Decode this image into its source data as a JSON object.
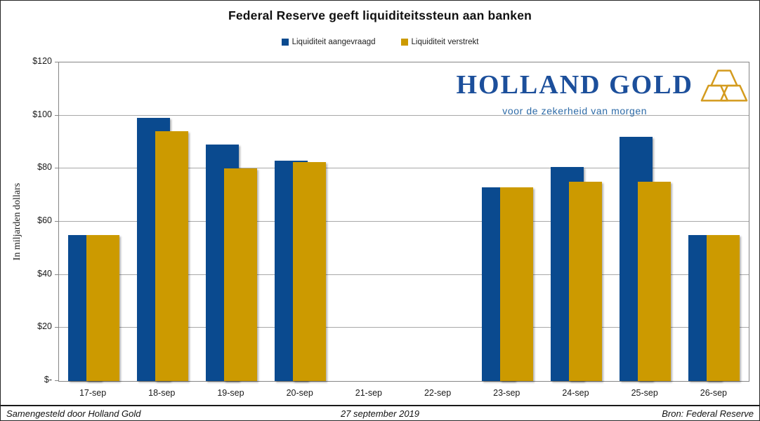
{
  "title": "Federal Reserve geeft liquiditeitssteun aan banken",
  "chart_data": {
    "type": "bar",
    "categories": [
      "17-sep",
      "18-sep",
      "19-sep",
      "20-sep",
      "21-sep",
      "22-sep",
      "23-sep",
      "24-sep",
      "25-sep",
      "26-sep"
    ],
    "series": [
      {
        "name": "Liquiditeit aangevraagd",
        "color": "#0A4A8F",
        "values": [
          55,
          99,
          89,
          83,
          null,
          null,
          73,
          80.5,
          92,
          55
        ]
      },
      {
        "name": "Liquiditeit verstrekt",
        "color": "#CC9A00",
        "values": [
          55,
          94,
          80,
          82.5,
          null,
          null,
          73,
          75,
          75,
          55
        ]
      }
    ],
    "title": "Federal Reserve geeft liquiditeitssteun aan banken",
    "xlabel": "",
    "ylabel": "In miljarden dollars",
    "ylim": [
      0,
      120
    ],
    "yticks": [
      {
        "label": "$-",
        "value": 0
      },
      {
        "label": "$20",
        "value": 20
      },
      {
        "label": "$40",
        "value": 40
      },
      {
        "label": "$60",
        "value": 60
      },
      {
        "label": "$80",
        "value": 80
      },
      {
        "label": "$100",
        "value": 100
      },
      {
        "label": "$120",
        "value": 120
      }
    ],
    "grid": "horizontal",
    "legend_position": "top-center"
  },
  "logo": {
    "wordmark": "HOLLAND GOLD",
    "tagline": "voor de zekerheid van morgen",
    "wordmark_color": "#1C4F9B",
    "tagline_color": "#2E6BA7",
    "gold_color": "#D49B1E",
    "icon": "gold-bars-icon"
  },
  "footer": {
    "left": "Samengesteld door Holland Gold",
    "center": "27 september 2019",
    "right": "Bron: Federal Reserve"
  }
}
